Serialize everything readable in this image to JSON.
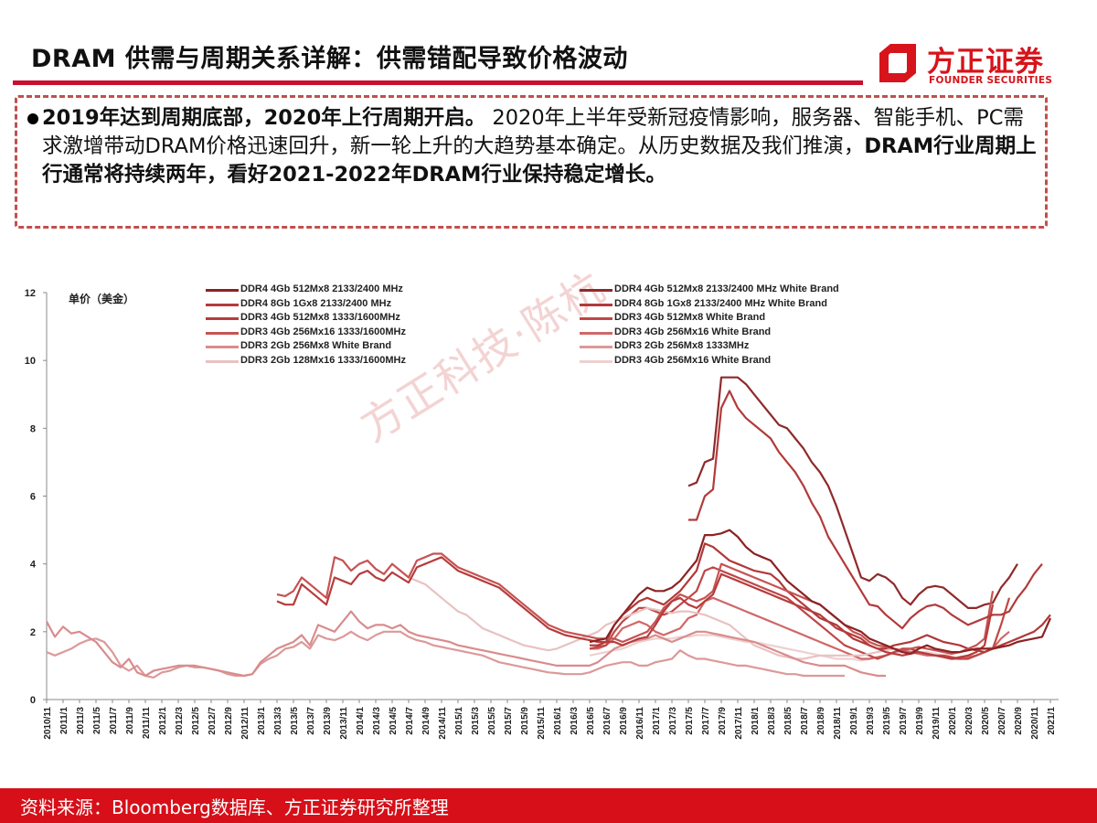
{
  "header": {
    "title": "DRAM 供需与周期关系详解：供需错配导致价格波动",
    "logo_cn": "方正证券",
    "logo_en": "FOUNDER SECURITIES"
  },
  "callout": {
    "bold_1": "2019年达到周期底部，2020年上行周期开启。",
    "normal_1": " 2020年上半年受新冠疫情影响，服务器、智能手机、PC需求激增带动DRAM价格迅速回升，新一轮上升的大趋势基本确定。从历史数据及我们推演，",
    "bold_2": "DRAM行业周期上行通常将持续两年，看好2021-2022年DRAM行业保持稳定增长。"
  },
  "watermark": "方正科技·陈杭",
  "footer": {
    "source": "资料来源：Bloomberg数据库、方正证券研究所整理"
  },
  "chart_data": {
    "type": "line",
    "title": "",
    "ylabel": "单价（美金）",
    "xlabel": "",
    "ylim": [
      0,
      12
    ],
    "yticks": [
      0,
      2,
      4,
      6,
      8,
      10,
      12
    ],
    "grid": false,
    "legend_position": "top",
    "x_start": "2010/11",
    "x_step_months": 1,
    "x_ticks": [
      "2010/11",
      "2011/1",
      "2011/3",
      "2011/5",
      "2011/7",
      "2011/9",
      "2011/11",
      "2012/1",
      "2012/3",
      "2012/5",
      "2012/7",
      "2012/9",
      "2012/11",
      "2013/1",
      "2013/3",
      "2013/5",
      "2013/7",
      "2013/9",
      "2013/11",
      "2014/1",
      "2014/3",
      "2014/5",
      "2014/7",
      "2014/9",
      "2014/11",
      "2015/1",
      "2015/3",
      "2015/5",
      "2015/7",
      "2015/9",
      "2015/11",
      "2016/1",
      "2016/3",
      "2016/5",
      "2016/7",
      "2016/9",
      "2016/11",
      "2017/1",
      "2017/3",
      "2017/5",
      "2017/7",
      "2017/9",
      "2017/11",
      "2018/1",
      "2018/3",
      "2018/5",
      "2018/7",
      "2018/9",
      "2018/11",
      "2019/1",
      "2019/3",
      "2019/5",
      "2019/7",
      "2019/9",
      "2019/11",
      "2020/1",
      "2020/3",
      "2020/5",
      "2020/7",
      "2020/9",
      "2020/11",
      "2021/1"
    ],
    "series": [
      {
        "name": "DDR4 4Gb 512Mx8 2133/2400 MHz",
        "color": "#8b2323",
        "start": "2016/5",
        "values": [
          1.7,
          1.75,
          1.8,
          2.2,
          2.5,
          2.8,
          3.1,
          3.3,
          3.2,
          3.2,
          3.3,
          3.5,
          3.8,
          4.1,
          4.85,
          4.85,
          4.9,
          5.0,
          4.8,
          4.5,
          4.3,
          4.2,
          4.1,
          3.8,
          3.5,
          3.3,
          3.1,
          2.9,
          2.8,
          2.6,
          2.4,
          2.2,
          2.1,
          2.0,
          1.8,
          1.7,
          1.6,
          1.5,
          1.4,
          1.35,
          1.5,
          1.6,
          1.5,
          1.45,
          1.4,
          1.4,
          1.45,
          1.5,
          1.5,
          1.5,
          1.55,
          1.6,
          1.7,
          1.75,
          1.8,
          1.85,
          2.4
        ]
      },
      {
        "name": "DDR4 8Gb 1Gx8 2133/2400 MHz",
        "color": "#b33a3a",
        "start": "2017/5",
        "values": [
          5.3,
          5.3,
          6.0,
          6.2,
          8.6,
          9.1,
          8.6,
          8.3,
          8.1,
          7.9,
          7.7,
          7.3,
          7.0,
          6.7,
          6.3,
          5.8,
          5.4,
          4.8,
          4.4,
          4.0,
          3.6,
          3.2,
          2.8,
          2.75,
          2.5,
          2.3,
          2.1,
          2.4,
          2.6,
          2.75,
          2.8,
          2.7,
          2.5,
          2.35,
          2.2,
          2.3,
          2.4,
          2.5,
          2.5,
          2.6,
          3.0,
          3.3,
          3.7,
          4.0
        ]
      },
      {
        "name": "DDR3 4Gb 512Mx8 1333/1600MHz",
        "color": "#b73c3c",
        "start": "2013/3",
        "values": [
          2.9,
          2.8,
          2.8,
          3.4,
          3.2,
          3.0,
          2.8,
          3.6,
          3.5,
          3.4,
          3.7,
          3.8,
          3.6,
          3.5,
          3.75,
          3.6,
          3.45,
          3.9,
          4.0,
          4.1,
          4.2,
          4.0,
          3.8,
          3.7,
          3.6,
          3.5,
          3.4,
          3.3,
          3.1,
          2.9,
          2.7,
          2.5,
          2.3,
          2.1,
          2.0,
          1.9,
          1.85,
          1.8,
          1.75,
          1.7,
          1.7,
          1.7,
          1.6,
          1.7,
          1.8,
          1.85,
          2.2,
          2.6,
          2.9,
          3.0,
          2.8,
          2.7,
          2.9,
          3.1,
          3.7,
          3.6,
          3.5,
          3.4,
          3.3,
          3.2,
          3.1,
          3.0,
          2.9,
          2.8,
          2.7,
          2.6,
          2.5,
          2.3,
          2.1,
          2.0,
          1.9,
          1.8,
          1.6,
          1.5,
          1.4,
          1.35,
          1.3,
          1.35,
          1.4,
          1.35,
          1.3,
          1.25,
          1.2,
          1.25,
          1.3,
          1.4,
          1.6,
          2.8
        ]
      },
      {
        "name": "DDR3 4Gb 256Mx16 1333/1600MHz",
        "color": "#c65353",
        "start": "2013/3",
        "values": [
          3.1,
          3.05,
          3.2,
          3.6,
          3.4,
          3.2,
          3.0,
          4.2,
          4.1,
          3.8,
          4.0,
          4.1,
          3.85,
          3.7,
          4.0,
          3.8,
          3.6,
          4.1,
          4.2,
          4.3,
          4.3,
          4.1,
          3.9,
          3.8,
          3.7,
          3.6,
          3.5,
          3.4,
          3.2,
          3.0,
          2.8,
          2.6,
          2.4,
          2.2,
          2.1,
          2.0,
          1.95,
          1.9,
          1.85,
          1.8,
          1.8,
          1.8,
          1.7,
          1.8,
          1.9,
          2.0,
          2.3,
          2.7,
          2.9,
          3.1,
          3.0,
          2.9,
          3.0,
          3.2,
          4.0,
          3.9,
          3.8,
          3.7,
          3.6,
          3.5,
          3.4,
          3.3,
          3.2,
          3.1,
          3.0,
          2.9,
          2.8,
          2.6,
          2.4,
          2.2,
          2.0,
          1.9,
          1.7,
          1.6,
          1.55,
          1.5,
          1.45,
          1.5,
          1.55,
          1.5,
          1.45,
          1.4,
          1.35,
          1.4,
          1.5,
          1.6,
          1.8,
          3.2
        ]
      },
      {
        "name": "DDR3 2Gb 256Mx8 White Brand",
        "color": "#d98c8c",
        "start": "2010/11",
        "values": [
          2.3,
          1.85,
          2.15,
          1.95,
          2.0,
          1.85,
          1.7,
          1.4,
          1.1,
          0.95,
          1.2,
          0.8,
          0.7,
          0.85,
          0.9,
          0.95,
          1.0,
          1.0,
          1.0,
          0.95,
          0.9,
          0.85,
          0.8,
          0.75,
          0.7,
          0.75,
          1.1,
          1.3,
          1.5,
          1.6,
          1.7,
          1.9,
          1.6,
          2.2,
          2.1,
          2.0,
          2.3,
          2.6,
          2.3,
          2.1,
          2.2,
          2.2,
          2.1,
          2.2,
          2.0,
          1.9,
          1.85,
          1.8,
          1.75,
          1.7,
          1.6,
          1.55,
          1.5,
          1.45,
          1.4,
          1.35,
          1.3,
          1.25,
          1.2,
          1.15,
          1.1,
          1.05,
          1.0,
          1.0,
          1.0,
          1.0,
          1.0,
          1.1,
          1.3,
          1.5,
          1.6,
          1.7,
          1.75,
          1.8,
          1.9,
          1.8,
          1.7,
          1.8,
          1.9,
          2.0,
          2.0,
          1.95,
          1.9,
          1.85,
          1.8,
          1.75,
          1.7,
          1.6,
          1.5,
          1.4,
          1.3,
          1.2,
          1.1,
          1.05,
          1.0,
          1.0,
          1.0,
          1.0,
          0.9,
          0.8,
          0.75,
          0.7,
          0.7
        ]
      },
      {
        "name": "DDR3 2Gb 128Mx16 1333/1600MHz",
        "color": "#e8c2c2",
        "start": "2014/7",
        "values": [
          3.6,
          3.5,
          3.4,
          3.2,
          3.0,
          2.8,
          2.6,
          2.5,
          2.3,
          2.1,
          2.0,
          1.9,
          1.8,
          1.7,
          1.6,
          1.55,
          1.5,
          1.45,
          1.5,
          1.6,
          1.7,
          1.8,
          1.9,
          2.0,
          2.2,
          2.3,
          2.4,
          2.5,
          2.6,
          2.7,
          2.65,
          2.6,
          2.55,
          2.6,
          2.6,
          2.55,
          2.5,
          2.4,
          2.3,
          2.2,
          2.0,
          1.8,
          1.6,
          1.5,
          1.4,
          1.3,
          1.25,
          1.2,
          1.2,
          1.25,
          1.3,
          1.3,
          1.3,
          1.3,
          1.3,
          1.3,
          1.35,
          1.4,
          1.45,
          1.5
        ]
      },
      {
        "name": "DDR4 4Gb 512Mx8 2133/2400 MHz White Brand",
        "color": "#8f2a2a",
        "start": "2017/5",
        "values": [
          6.3,
          6.4,
          7.0,
          7.1,
          9.5,
          9.5,
          9.5,
          9.3,
          9.0,
          8.7,
          8.4,
          8.1,
          8.0,
          7.7,
          7.4,
          7.0,
          6.7,
          6.3,
          5.7,
          5.0,
          4.3,
          3.6,
          3.5,
          3.7,
          3.6,
          3.4,
          3.0,
          2.8,
          3.1,
          3.3,
          3.35,
          3.3,
          3.1,
          2.9,
          2.7,
          2.7,
          2.8,
          2.85,
          3.3,
          3.6,
          4.0
        ]
      },
      {
        "name": "DDR4 8Gb 1Gx8 2133/2400 MHz White Brand",
        "color": "#b13838",
        "start": "2016/5",
        "values": [
          1.6,
          1.6,
          1.7,
          2.2,
          2.5,
          2.7,
          2.9,
          3.0,
          2.9,
          2.8,
          3.0,
          3.2,
          3.5,
          3.8,
          4.6,
          4.5,
          4.3,
          4.1,
          4.0,
          3.9,
          3.8,
          3.75,
          3.7,
          3.5,
          3.2,
          3.0,
          2.8,
          2.6,
          2.4,
          2.3,
          2.2,
          2.0,
          1.8,
          1.7,
          1.6,
          1.5,
          1.5,
          1.6,
          1.65,
          1.7,
          1.8,
          1.9,
          1.8,
          1.7,
          1.65,
          1.6,
          1.5,
          1.45,
          1.4,
          1.5,
          1.6,
          1.7,
          1.8,
          1.9,
          2.0,
          2.2,
          2.5
        ]
      },
      {
        "name": "DDR3 4Gb 512Mx8 White Brand",
        "color": "#c04646",
        "start": "2016/5",
        "values": [
          1.5,
          1.55,
          1.6,
          2.0,
          2.3,
          2.5,
          2.7,
          2.7,
          2.6,
          2.5,
          2.6,
          2.8,
          3.0,
          3.2,
          3.8,
          3.9,
          3.8,
          3.7,
          3.6,
          3.5,
          3.4,
          3.3,
          3.2,
          3.1,
          3.0,
          2.8,
          2.6,
          2.4,
          2.2,
          2.0,
          1.8,
          1.6,
          1.5,
          1.4,
          1.3,
          1.2,
          1.3,
          1.4,
          1.5,
          1.5,
          1.4,
          1.35,
          1.3,
          1.3,
          1.25,
          1.2,
          1.2,
          1.3,
          1.4,
          1.5,
          2.2,
          3.0
        ]
      },
      {
        "name": "DDR3 4Gb 256Mx16 White Brand",
        "color": "#d06868",
        "start": "2016/5",
        "values": [
          1.5,
          1.5,
          1.6,
          1.8,
          2.1,
          2.2,
          2.3,
          2.2,
          2.0,
          1.9,
          2.0,
          2.1,
          2.4,
          2.5,
          2.9,
          3.0,
          2.9,
          2.8,
          2.7,
          2.6,
          2.5,
          2.4,
          2.3,
          2.2,
          2.1,
          2.0,
          1.9,
          1.8,
          1.7,
          1.6,
          1.5,
          1.4,
          1.3,
          1.2,
          1.2,
          1.25,
          1.3,
          1.4,
          1.45,
          1.4,
          1.35,
          1.3,
          1.3,
          1.25,
          1.2,
          1.2,
          1.25,
          1.3,
          1.4,
          1.5,
          1.8,
          2.0
        ]
      },
      {
        "name": "DDR3 2Gb 256Mx8 1333MHz",
        "color": "#dc9999",
        "start": "2010/11",
        "values": [
          1.4,
          1.3,
          1.4,
          1.5,
          1.65,
          1.75,
          1.8,
          1.7,
          1.4,
          1.0,
          0.85,
          1.0,
          0.7,
          0.65,
          0.8,
          0.85,
          0.95,
          1.0,
          0.95,
          0.95,
          0.9,
          0.85,
          0.75,
          0.7,
          0.7,
          0.75,
          1.05,
          1.2,
          1.3,
          1.5,
          1.55,
          1.7,
          1.5,
          1.9,
          1.8,
          1.75,
          1.85,
          2.0,
          1.85,
          1.75,
          1.9,
          2.0,
          2.0,
          2.0,
          1.85,
          1.75,
          1.7,
          1.6,
          1.55,
          1.5,
          1.45,
          1.4,
          1.35,
          1.3,
          1.2,
          1.1,
          1.05,
          1.0,
          0.95,
          0.9,
          0.85,
          0.8,
          0.78,
          0.75,
          0.75,
          0.75,
          0.8,
          0.9,
          1.0,
          1.05,
          1.1,
          1.1,
          1.0,
          1.0,
          1.1,
          1.15,
          1.2,
          1.45,
          1.3,
          1.2,
          1.2,
          1.15,
          1.1,
          1.05,
          1.0,
          1.0,
          0.95,
          0.9,
          0.85,
          0.8,
          0.75,
          0.75,
          0.7,
          0.7,
          0.7,
          0.7,
          0.7,
          0.7
        ]
      },
      {
        "name": "DDR3 4Gb 256Mx16 White Brand",
        "color": "#eed0d0",
        "start": "2016/5",
        "values": [
          1.3,
          1.35,
          1.4,
          1.45,
          1.5,
          1.6,
          1.7,
          1.75,
          1.8,
          1.8,
          1.8,
          1.85,
          1.85,
          1.9,
          1.9,
          1.9,
          1.85,
          1.8,
          1.75,
          1.7,
          1.7,
          1.65,
          1.6,
          1.55,
          1.5,
          1.45,
          1.4,
          1.35,
          1.3,
          1.25,
          1.2,
          1.2,
          1.2,
          1.15,
          1.2,
          1.25,
          1.3,
          1.35,
          1.4,
          1.45,
          1.4,
          1.4,
          1.35,
          1.3,
          1.35,
          1.4,
          1.45,
          1.5,
          1.5,
          1.55
        ]
      }
    ]
  }
}
